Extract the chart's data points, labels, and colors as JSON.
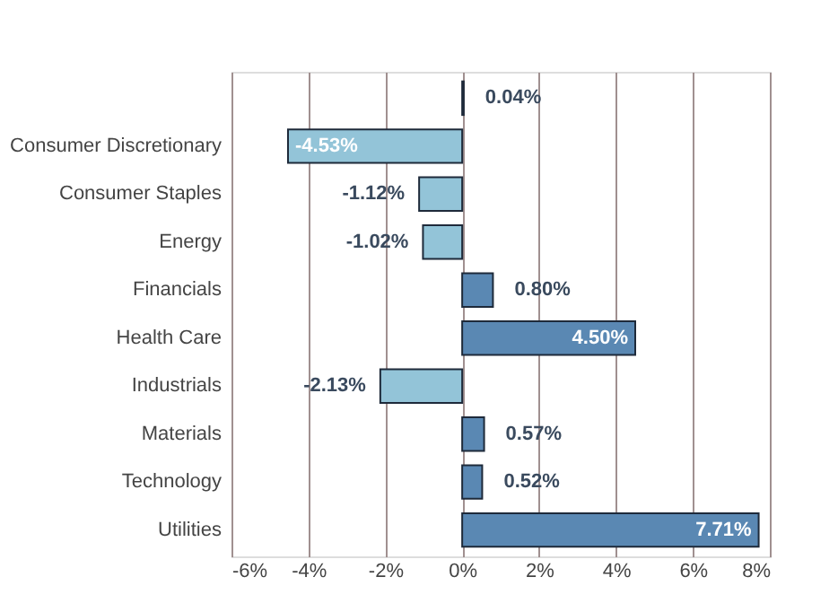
{
  "chart_data": {
    "type": "bar",
    "orientation": "horizontal",
    "categories": [
      null,
      "Consumer Discretionary",
      "Consumer Staples",
      "Energy",
      "Financials",
      "Health Care",
      "Industrials",
      "Materials",
      "Technology",
      "Utilities"
    ],
    "values": [
      0.04,
      -4.53,
      -1.12,
      -1.02,
      0.8,
      4.5,
      -2.13,
      0.57,
      0.52,
      7.71
    ],
    "colors": [
      "#4f6f8f",
      "#93c4d8",
      "#93c4d8",
      "#93c4d8",
      "#5a88b3",
      "#5a88b3",
      "#93c4d8",
      "#5a88b3",
      "#5a88b3",
      "#5a88b3"
    ],
    "value_labels": [
      "0.04%",
      "-4.53%",
      "-1.12%",
      "-1.02%",
      "0.80%",
      "4.50%",
      "-2.13%",
      "0.57%",
      "0.52%",
      "7.71%"
    ],
    "xlim": [
      -6,
      8
    ],
    "xticks": [
      {
        "value": -6,
        "label": "-6%"
      },
      {
        "value": -4,
        "label": "-4%"
      },
      {
        "value": -2,
        "label": "-2%"
      },
      {
        "value": 0,
        "label": "0%"
      },
      {
        "value": 2,
        "label": "2%"
      },
      {
        "value": 4,
        "label": "4%"
      },
      {
        "value": 6,
        "label": "6%"
      },
      {
        "value": 8,
        "label": "8%"
      }
    ],
    "grid": "x"
  }
}
